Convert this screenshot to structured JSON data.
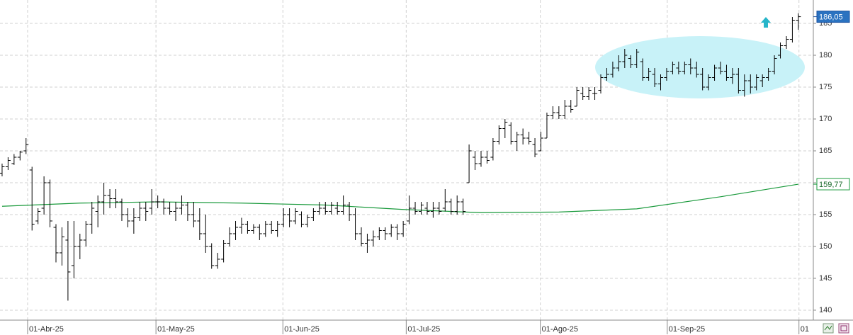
{
  "chart_data": {
    "type": "ohlc",
    "color": "#000000",
    "grid": true,
    "x": [
      0,
      1,
      2,
      3,
      4,
      5,
      6,
      7,
      8,
      9,
      10,
      11,
      12,
      13,
      14,
      15,
      16,
      17,
      18,
      19,
      20,
      21,
      22,
      23,
      24,
      25,
      26,
      27,
      28,
      29,
      30,
      31,
      32,
      33,
      34,
      35,
      36,
      37,
      38,
      39,
      40,
      41,
      42,
      43,
      44,
      45,
      46,
      47,
      48,
      49,
      50,
      51,
      52,
      53,
      54,
      55,
      56,
      57,
      58,
      59,
      60,
      61,
      62,
      63,
      64,
      65,
      66,
      67,
      68,
      69,
      70,
      71,
      72,
      73,
      74,
      75,
      76,
      77,
      78,
      79,
      80,
      81,
      82,
      83,
      84,
      85,
      86,
      87,
      88,
      89,
      90,
      91,
      92,
      93,
      94,
      95,
      96,
      97,
      98,
      99,
      100,
      101,
      102,
      103,
      104,
      105,
      106,
      107,
      108,
      109,
      110,
      111,
      112,
      113,
      114,
      115,
      116,
      117,
      118,
      119,
      120,
      121,
      122,
      123,
      124,
      125,
      126,
      127,
      128,
      129,
      130,
      131,
      132,
      133
    ],
    "open": [
      161.5,
      162.5,
      163,
      164,
      165,
      162,
      154,
      156,
      160,
      153,
      149,
      151,
      147,
      150,
      151,
      153.5,
      155.5,
      157,
      158,
      157.5,
      157,
      155,
      154,
      154.5,
      156,
      156,
      157,
      157,
      156,
      155.5,
      156,
      156.5,
      155,
      154,
      152,
      150,
      147,
      148,
      150.5,
      152,
      153,
      153.5,
      152.5,
      153,
      152,
      153.5,
      152.5,
      153.5,
      155,
      154,
      155,
      153.5,
      154.5,
      155.5,
      156,
      155.5,
      156,
      155.5,
      156.5,
      155,
      152,
      150.5,
      151,
      151.5,
      152.5,
      152,
      153,
      152,
      154,
      156,
      155.5,
      156,
      155.5,
      156,
      156,
      157,
      155.5,
      157,
      160,
      164,
      163,
      164,
      164,
      166.5,
      168.5,
      169,
      166.5,
      167.5,
      167,
      166,
      165,
      167,
      170.5,
      171,
      170.5,
      172,
      172,
      174,
      173.5,
      174,
      174.5,
      176.5,
      177,
      178,
      179,
      179.5,
      178.5,
      179,
      176.5,
      177,
      175.5,
      176.5,
      177.5,
      178,
      177.5,
      178.5,
      178,
      177,
      175,
      176.5,
      178,
      177.5,
      176.5,
      177,
      174.5,
      176,
      175,
      176,
      176.5,
      177.5,
      180,
      181.5,
      182.5,
      185.5
    ],
    "high": [
      163,
      164,
      164.5,
      165,
      167,
      162.5,
      156,
      161,
      160.5,
      153.5,
      153,
      154,
      154,
      152,
      154,
      157,
      158,
      160,
      159,
      159,
      157.5,
      156,
      156,
      157,
      157,
      159,
      158,
      157.5,
      157,
      157,
      158,
      157,
      157,
      156,
      155,
      150.5,
      149,
      151,
      153,
      154,
      154.5,
      154,
      153.5,
      153.5,
      154,
      154,
      154,
      156,
      156,
      156,
      155.5,
      155,
      156,
      157,
      157,
      157,
      157,
      158,
      157,
      156,
      153,
      152,
      152.5,
      153,
      153,
      153.5,
      153.5,
      154,
      158,
      157,
      157,
      157,
      157,
      157,
      159,
      157.5,
      158,
      157.5,
      166,
      165,
      165,
      165,
      167,
      169,
      170,
      169.5,
      168,
      168.5,
      168,
      167,
      168,
      171,
      172,
      172,
      173,
      173,
      175,
      175,
      175,
      175,
      177,
      178,
      179,
      180,
      181,
      180,
      181,
      179.5,
      178,
      178,
      177,
      178,
      179,
      179,
      179,
      179.5,
      179,
      178,
      177,
      178.5,
      179,
      178.5,
      178,
      178,
      177,
      177,
      177,
      177,
      178,
      180,
      182,
      183,
      186,
      186.6
    ],
    "low": [
      161,
      162,
      162.8,
      163.5,
      164.5,
      152.5,
      153.5,
      155,
      153,
      147.5,
      147,
      141.5,
      145,
      148,
      150,
      152,
      153,
      155,
      156,
      156,
      154,
      153,
      152,
      154,
      154,
      155,
      156,
      155,
      155,
      154,
      155,
      154,
      153,
      151,
      149,
      146.5,
      146.5,
      147.5,
      150,
      151,
      152,
      152,
      152,
      151,
      151.5,
      152,
      151.5,
      153,
      153,
      153.5,
      153,
      153,
      154,
      155,
      155,
      155,
      155,
      155,
      154,
      151,
      150,
      149,
      150,
      151,
      151,
      151.5,
      151,
      151.5,
      153.5,
      155,
      155,
      155,
      154.5,
      155,
      155.5,
      155,
      155,
      155,
      160,
      162,
      162.5,
      163,
      163.5,
      166,
      167,
      166,
      165,
      166,
      166,
      164,
      165,
      167,
      170,
      170,
      170,
      171,
      172,
      173,
      173,
      173,
      174,
      176,
      176.5,
      177.5,
      178,
      178,
      178,
      176,
      176,
      175,
      174.5,
      176,
      177,
      177,
      177,
      177,
      176.5,
      174.5,
      174.5,
      176,
      177,
      176,
      175.5,
      174,
      173.5,
      174,
      174.5,
      175,
      176,
      177,
      179.5,
      181,
      182,
      184
    ],
    "close": [
      162.5,
      163.5,
      164,
      164.8,
      166,
      153.5,
      155.5,
      160,
      154,
      149,
      151.5,
      146,
      150,
      151,
      153.5,
      156,
      157,
      158,
      157.5,
      157,
      155,
      154,
      154.5,
      156,
      155.5,
      157,
      157,
      156,
      155.5,
      156,
      156.5,
      155,
      154,
      152,
      150,
      147,
      148,
      150.5,
      152,
      153,
      153.5,
      152.5,
      153,
      152,
      153.5,
      152.5,
      153.5,
      155,
      154,
      155.5,
      153.5,
      154.5,
      155.5,
      156,
      155.5,
      156.5,
      155.5,
      156.5,
      155,
      152,
      150.5,
      151,
      151.5,
      152.5,
      152,
      153,
      152,
      153.5,
      156,
      155.5,
      156.5,
      155.5,
      156,
      155.5,
      157,
      155.5,
      157,
      155.5,
      165,
      163,
      164,
      163.5,
      166.5,
      168.5,
      169.5,
      166.5,
      167.5,
      167,
      166.5,
      164.5,
      167,
      170.5,
      171,
      170.5,
      172,
      171.5,
      174.5,
      173.5,
      174.5,
      174,
      176.5,
      177,
      178,
      179,
      180,
      178.5,
      180.5,
      176.5,
      177.5,
      175.5,
      176.5,
      177.5,
      178.5,
      177.5,
      178.5,
      178,
      177,
      175,
      176.5,
      178,
      177.5,
      176.5,
      177,
      174.5,
      176,
      175,
      176.5,
      176.5,
      177.5,
      179.5,
      181.5,
      182.5,
      185.5,
      186.05
    ],
    "close_label": {
      "value": 186.05,
      "label": "186,05"
    },
    "moving_average": {
      "color": "#1a9a3c",
      "x": [
        0,
        13,
        26,
        40,
        54,
        67,
        80,
        93,
        106,
        120,
        133
      ],
      "values": [
        156.3,
        156.8,
        157.0,
        156.8,
        156.5,
        155.8,
        155.3,
        155.4,
        155.9,
        157.8,
        159.77
      ],
      "last_label": {
        "value": 159.77,
        "label": "159,77"
      }
    },
    "xlim": [
      -0.35,
      135.5
    ],
    "xticks": [
      {
        "value": 4.26,
        "label": "01-Abr-25"
      },
      {
        "value": 25.7,
        "label": "01-May-25"
      },
      {
        "value": 46.9,
        "label": "01-Jun-25"
      },
      {
        "value": 67.5,
        "label": "01-Jul-25"
      },
      {
        "value": 89.9,
        "label": "01-Ago-25"
      },
      {
        "value": 111.1,
        "label": "01-Sep-25"
      },
      {
        "value": 133.1,
        "label": "01"
      }
    ],
    "ylim": [
      138.44,
      188.67
    ],
    "yticks": [
      140,
      145,
      150,
      155,
      160,
      165,
      170,
      175,
      180,
      185
    ]
  }
}
